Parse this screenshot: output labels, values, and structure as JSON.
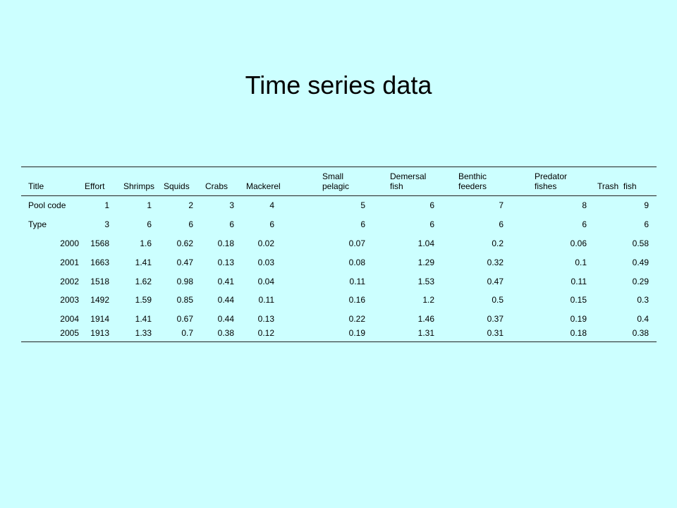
{
  "title": "Time series data",
  "table": {
    "header": [
      "Title",
      "Effort",
      "Shrimps",
      "Squids",
      "Crabs",
      "Mackerel",
      "Small pelagic",
      "Demersal fish",
      "Benthic feeders",
      "Predator fishes",
      "Trash  fish"
    ],
    "rows": [
      [
        "Pool code",
        "1",
        "1",
        "2",
        "3",
        "4",
        "5",
        "6",
        "7",
        "8",
        "9"
      ],
      [
        "Type",
        "3",
        "6",
        "6",
        "6",
        "6",
        "6",
        "6",
        "6",
        "6",
        "6"
      ],
      [
        "2000",
        "1568",
        "1.6",
        "0.62",
        "0.18",
        "0.02",
        "0.07",
        "1.04",
        "0.2",
        "0.06",
        "0.58"
      ],
      [
        "2001",
        "1663",
        "1.41",
        "0.47",
        "0.13",
        "0.03",
        "0.08",
        "1.29",
        "0.32",
        "0.1",
        "0.49"
      ],
      [
        "2002",
        "1518",
        "1.62",
        "0.98",
        "0.41",
        "0.04",
        "0.11",
        "1.53",
        "0.47",
        "0.11",
        "0.29"
      ],
      [
        "2003",
        "1492",
        "1.59",
        "0.85",
        "0.44",
        "0.11",
        "0.16",
        "1.2",
        "0.5",
        "0.15",
        "0.3"
      ],
      [
        "2004",
        "1914",
        "1.41",
        "0.67",
        "0.44",
        "0.13",
        "0.22",
        "1.46",
        "0.37",
        "0.19",
        "0.4"
      ],
      [
        "2005",
        "1913",
        "1.33",
        "0.7",
        "0.38",
        "0.12",
        "0.19",
        "1.31",
        "0.31",
        "0.18",
        "0.38"
      ]
    ]
  }
}
